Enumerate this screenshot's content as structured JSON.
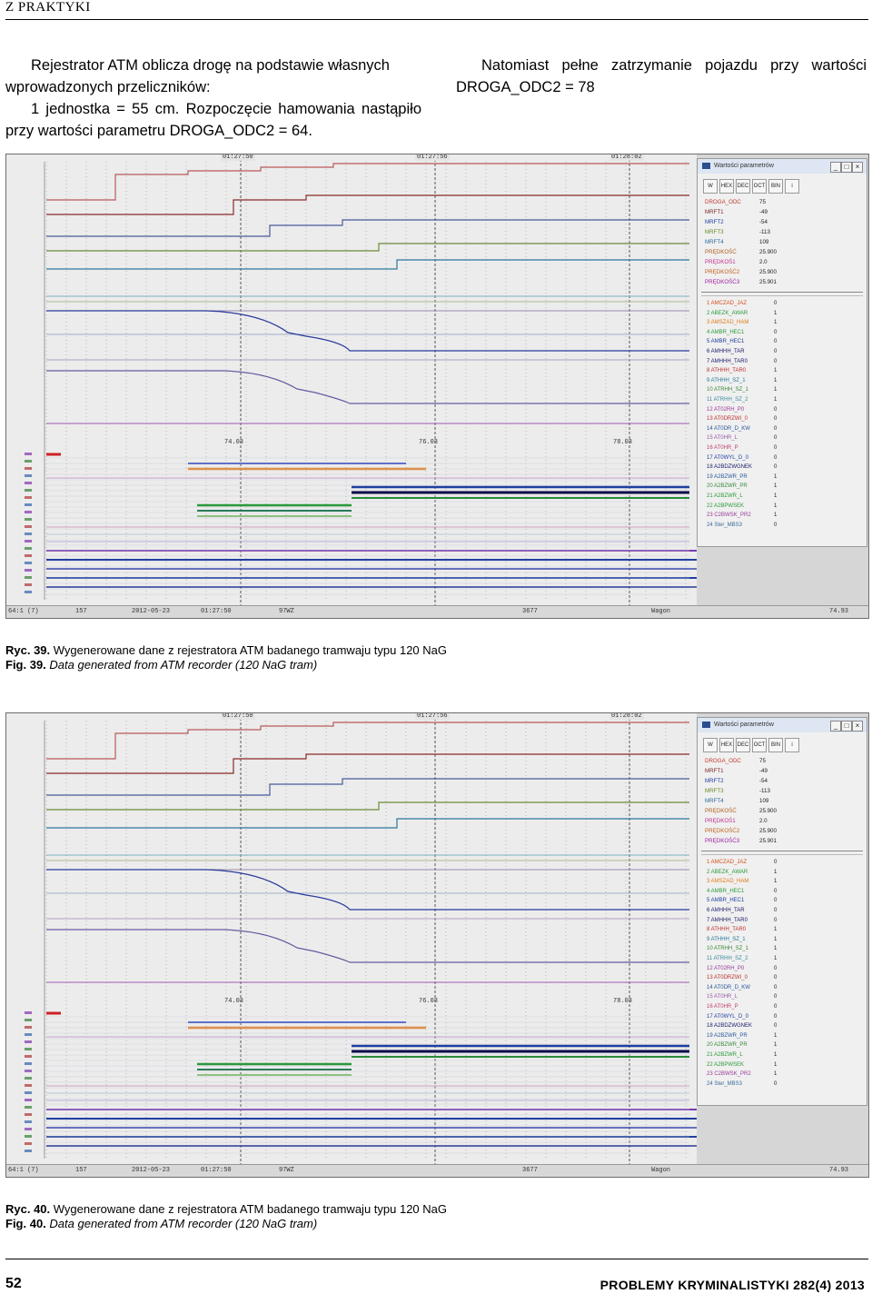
{
  "header": {
    "section": "Z PRAKTYKI"
  },
  "text": {
    "left_para_line1": "Rejestrator ATM oblicza drogę na podstawie własnych",
    "left_para_line2": "wprowadzonych przeliczników:",
    "left_para2": "1 jednostka = 55 cm. Rozpoczęcie hamowania nastąpiło przy wartości parametru DROGA_ODC2 = 64.",
    "right_para": "Natomiast pełne zatrzymanie pojazdu przy wartości DROGA_ODC2 = 78"
  },
  "figures": [
    {
      "time_labels": [
        "01:27:50",
        "01:27:56",
        "01:28:02"
      ],
      "pos_labels": [
        "74.03",
        "76.03",
        "78.03"
      ],
      "status": [
        "64:1 (7)",
        "157",
        "2012-05-23",
        "01:27:50",
        "97WZ",
        "3677",
        "Wagon",
        "74.93"
      ],
      "caption_pl_num": "Ryc. 39.",
      "caption_pl": "Wygenerowane dane z rejestratora ATM badanego tramwaju typu 120 NaG",
      "caption_en_num": "Fig. 39.",
      "caption_en": "Data generated from ATM recorder (120 NaG tram)"
    },
    {
      "time_labels": [
        "01:27:50",
        "01:27:56",
        "01:28:02"
      ],
      "pos_labels": [
        "74.03",
        "76.03",
        "78.03"
      ],
      "status": [
        "64:1 (7)",
        "157",
        "2012-05-23",
        "01:27:50",
        "97WZ",
        "3677",
        "Wagon",
        "74.93"
      ],
      "caption_pl_num": "Ryc. 40.",
      "caption_pl": "Wygenerowane dane z rejestratora ATM badanego tramwaju typu 120 NaG",
      "caption_en_num": "Fig. 40.",
      "caption_en": "Data generated from ATM recorder (120 NaG tram)"
    }
  ],
  "panel": {
    "title": "Wartości parametrów",
    "toolbar": [
      "W",
      "HEX",
      "DEC",
      "OCT",
      "BIN",
      "i"
    ],
    "params": [
      {
        "name": "DROGA_ODC",
        "value": "75",
        "color": "#c0392b"
      },
      {
        "name": "MRFT1",
        "value": "-49",
        "color": "#7a2a2a"
      },
      {
        "name": "MRFT2",
        "value": "-54",
        "color": "#1f3fa0"
      },
      {
        "name": "MRFT3",
        "value": "-113",
        "color": "#6a8a2a"
      },
      {
        "name": "MRFT4",
        "value": "109",
        "color": "#2a6a9a"
      },
      {
        "name": "PRĘDKOŚĆ",
        "value": "25.900",
        "color": "#b06020"
      },
      {
        "name": "PRĘDKOŚ1",
        "value": "2.0",
        "color": "#c03090"
      },
      {
        "name": "PRĘDKOŚĆ2",
        "value": "25.900",
        "color": "#c06020"
      },
      {
        "name": "PRĘDKOŚĆ3",
        "value": "25.901",
        "color": "#a020a0"
      }
    ],
    "digital": [
      {
        "name": "1 AMCZAD_JAZ",
        "value": "0",
        "color": "#d4501a"
      },
      {
        "name": "2 ABEZK_AWAR",
        "value": "1",
        "color": "#2a9a3a"
      },
      {
        "name": "3 AMSZAD_HAM",
        "value": "1",
        "color": "#e07a1a"
      },
      {
        "name": "4 AMBR_HEC1",
        "value": "0",
        "color": "#2a9a3a"
      },
      {
        "name": "5 AMBR_HEC1",
        "value": "0",
        "color": "#1f3fa0"
      },
      {
        "name": "6 AMHHH_TAR",
        "value": "0",
        "color": "#1a1a6a"
      },
      {
        "name": "7 AMHHH_TAR0",
        "value": "0",
        "color": "#1a1a6a"
      },
      {
        "name": "8 ATHHH_TAR0",
        "value": "1",
        "color": "#c03030"
      },
      {
        "name": "9 ATHHH_SZ_1",
        "value": "1",
        "color": "#2a7a9a"
      },
      {
        "name": "10 ATRHH_SZ_1",
        "value": "1",
        "color": "#3a8a3a"
      },
      {
        "name": "11 ATRHH_SZ_2",
        "value": "1",
        "color": "#3a8a9a"
      },
      {
        "name": "12 AT02RH_P0",
        "value": "0",
        "color": "#9a3a9a"
      },
      {
        "name": "13 AT0DRZWI_0",
        "value": "0",
        "color": "#c03030"
      },
      {
        "name": "14 AT0DR_D_KW",
        "value": "0",
        "color": "#2a5a9a"
      },
      {
        "name": "15 AT0HR_L",
        "value": "0",
        "color": "#9a5aaa"
      },
      {
        "name": "16 AT0HR_P",
        "value": "0",
        "color": "#c04070"
      },
      {
        "name": "17 AT0WYL_D_0",
        "value": "0",
        "color": "#1f3fa0"
      },
      {
        "name": "18 A2BDZWGNEK",
        "value": "0",
        "color": "#1a1a6a"
      },
      {
        "name": "19 A2BZWR_PR",
        "value": "1",
        "color": "#2a5a9a"
      },
      {
        "name": "20 A2BZWR_PR",
        "value": "1",
        "color": "#3a8a3a"
      },
      {
        "name": "21 A2BZWR_L",
        "value": "1",
        "color": "#2a9a3a"
      },
      {
        "name": "22 A2BPWSEK",
        "value": "1",
        "color": "#2a9a3a"
      },
      {
        "name": "23 C2BWSK_PR2",
        "value": "1",
        "color": "#9a3a9a"
      },
      {
        "name": "24 Ster_MBS3",
        "value": "0",
        "color": "#3a6a9a"
      }
    ]
  },
  "footer": {
    "page_number": "52",
    "journal": "PROBLEMY KRYMINALISTYKI 282(4) 2013"
  }
}
